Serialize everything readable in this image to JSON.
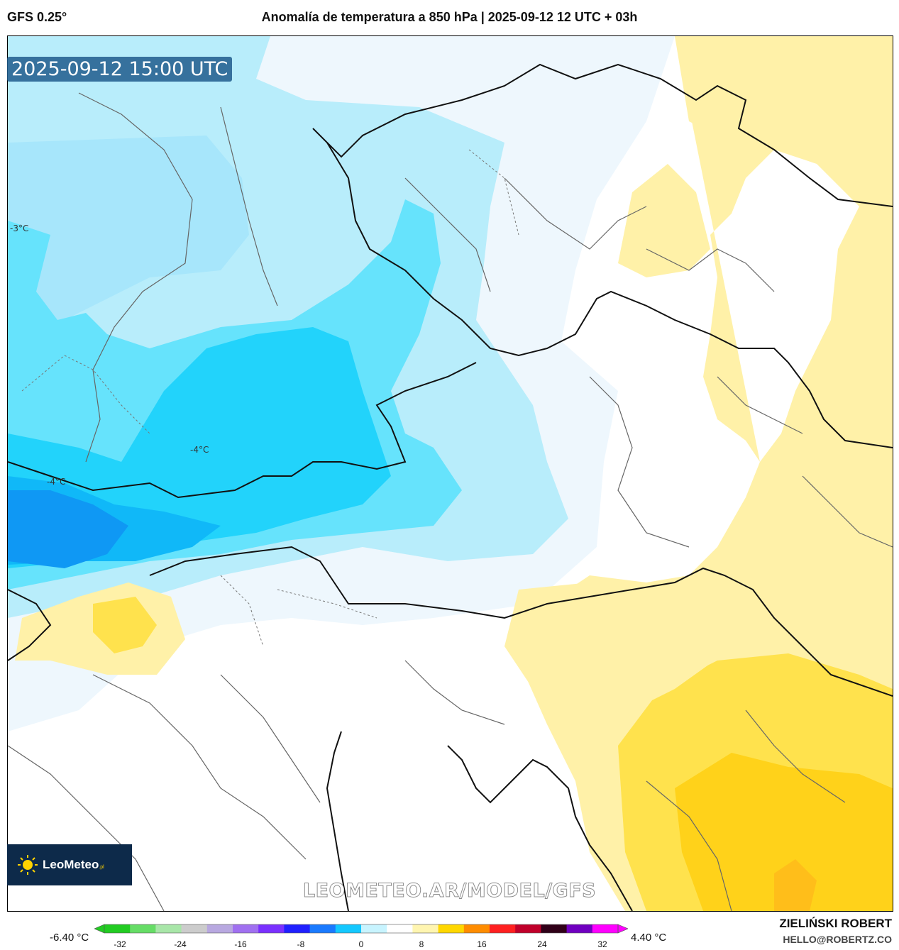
{
  "header": {
    "model": "GFS 0.25°",
    "title": "Anomalía de temperatura a 850 hPa | 2025-09-12 12 UTC + 03h"
  },
  "map": {
    "timestamp": "2025-09-12 15:00 UTC",
    "contour_labels": [
      "-3°C",
      "-4°C",
      "-4°C"
    ],
    "watermark": "LEOMETEO.AR/MODEL/GFS",
    "logo": {
      "name": "LeoMeteo",
      "suffix": ".pl"
    }
  },
  "colorbar": {
    "min_label": "-6.40 °C",
    "max_label": "4.40 °C",
    "ticks": [
      "-32",
      "-24",
      "-16",
      "-8",
      "0",
      "8",
      "16",
      "24",
      "32"
    ],
    "colors": [
      "#22cc22",
      "#66dd66",
      "#a8e6a8",
      "#cccccc",
      "#b8a8e0",
      "#a070f0",
      "#7a30ff",
      "#2020ff",
      "#1a7aff",
      "#14c8ff",
      "#c8f4ff",
      "#ffffff",
      "#fff5b0",
      "#ffd700",
      "#ff8c00",
      "#ff2020",
      "#c0002a",
      "#300018",
      "#7000c0",
      "#ff00ff"
    ]
  },
  "credits": {
    "author": "ZIELIŃSKI ROBERT",
    "email": "HELLO@ROBERTZ.CO"
  }
}
